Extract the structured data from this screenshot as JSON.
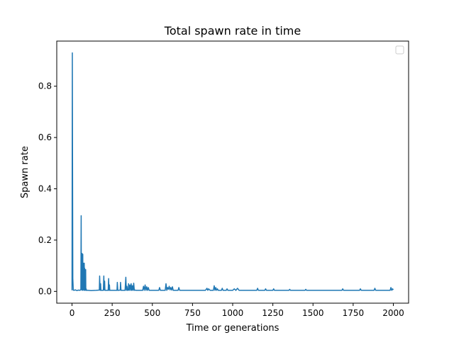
{
  "chart_data": {
    "type": "line",
    "title": "Total spawn rate in time",
    "xlabel": "Time or generations",
    "ylabel": "Spawn rate",
    "xlim": [
      -95,
      2095
    ],
    "ylim": [
      -0.046,
      0.976
    ],
    "xticks": [
      0,
      250,
      500,
      750,
      1000,
      1250,
      1500,
      1750,
      2000
    ],
    "yticks": [
      0.0,
      0.2,
      0.4,
      0.6,
      0.8
    ],
    "xtick_labels": [
      "0",
      "250",
      "500",
      "750",
      "1000",
      "1250",
      "1500",
      "1750",
      "2000"
    ],
    "ytick_labels": [
      "0.0",
      "0.2",
      "0.4",
      "0.6",
      "0.8"
    ],
    "grid": false,
    "legend": "upper-right (empty)",
    "series": [
      {
        "color": "#1f77b4",
        "x": [
          0,
          2,
          3,
          5,
          8,
          12,
          20,
          30,
          40,
          50,
          55,
          57,
          58,
          60,
          62,
          64,
          65,
          66,
          67,
          68,
          70,
          72,
          73,
          74,
          76,
          78,
          79,
          80,
          82,
          84,
          85,
          86,
          88,
          90,
          100,
          120,
          150,
          170,
          172,
          175,
          178,
          180,
          195,
          198,
          200,
          203,
          205,
          225,
          228,
          230,
          233,
          235,
          280,
          282,
          285,
          288,
          290,
          300,
          302,
          305,
          310,
          330,
          335,
          338,
          342,
          345,
          350,
          352,
          356,
          360,
          365,
          368,
          372,
          376,
          380,
          384,
          388,
          392,
          400,
          420,
          440,
          445,
          450,
          455,
          460,
          465,
          470,
          475,
          480,
          500,
          520,
          540,
          545,
          550,
          560,
          580,
          585,
          590,
          595,
          600,
          605,
          610,
          615,
          620,
          625,
          630,
          640,
          660,
          665,
          670,
          675,
          700,
          750,
          800,
          830,
          840,
          845,
          850,
          860,
          880,
          885,
          890,
          895,
          900,
          905,
          910,
          930,
          935,
          940,
          960,
          965,
          970,
          1000,
          1010,
          1020,
          1030,
          1040,
          1050,
          1100,
          1150,
          1155,
          1160,
          1200,
          1205,
          1210,
          1250,
          1255,
          1260,
          1300,
          1350,
          1355,
          1360,
          1400,
          1450,
          1455,
          1460,
          1500,
          1550,
          1600,
          1650,
          1680,
          1685,
          1690,
          1700,
          1750,
          1790,
          1795,
          1800,
          1850,
          1880,
          1885,
          1890,
          1900,
          1950,
          1980,
          1985,
          1990,
          1995,
          2000
        ],
        "y": [
          0.004,
          0.93,
          0.6,
          0.05,
          0.005,
          0.004,
          0.006,
          0.003,
          0.005,
          0.004,
          0.008,
          0.295,
          0.02,
          0.005,
          0.148,
          0.01,
          0.12,
          0.004,
          0.145,
          0.008,
          0.11,
          0.006,
          0.085,
          0.004,
          0.11,
          0.005,
          0.09,
          0.004,
          0.01,
          0.005,
          0.085,
          0.004,
          0.01,
          0.004,
          0.004,
          0.003,
          0.004,
          0.005,
          0.06,
          0.004,
          0.03,
          0.004,
          0.004,
          0.06,
          0.005,
          0.04,
          0.004,
          0.004,
          0.05,
          0.004,
          0.025,
          0.004,
          0.004,
          0.035,
          0.004,
          0.004,
          0.004,
          0.005,
          0.035,
          0.004,
          0.004,
          0.004,
          0.055,
          0.004,
          0.02,
          0.004,
          0.005,
          0.03,
          0.004,
          0.025,
          0.004,
          0.03,
          0.004,
          0.022,
          0.004,
          0.032,
          0.004,
          0.005,
          0.004,
          0.004,
          0.004,
          0.02,
          0.004,
          0.025,
          0.004,
          0.018,
          0.004,
          0.015,
          0.004,
          0.004,
          0.004,
          0.004,
          0.015,
          0.004,
          0.004,
          0.004,
          0.03,
          0.004,
          0.015,
          0.008,
          0.02,
          0.006,
          0.015,
          0.005,
          0.018,
          0.004,
          0.004,
          0.004,
          0.015,
          0.004,
          0.004,
          0.004,
          0.004,
          0.004,
          0.004,
          0.012,
          0.004,
          0.01,
          0.004,
          0.004,
          0.022,
          0.004,
          0.015,
          0.004,
          0.01,
          0.004,
          0.004,
          0.012,
          0.004,
          0.004,
          0.01,
          0.004,
          0.004,
          0.01,
          0.004,
          0.012,
          0.004,
          0.004,
          0.004,
          0.004,
          0.012,
          0.004,
          0.004,
          0.01,
          0.004,
          0.004,
          0.01,
          0.004,
          0.004,
          0.004,
          0.008,
          0.004,
          0.004,
          0.004,
          0.008,
          0.004,
          0.004,
          0.004,
          0.004,
          0.004,
          0.004,
          0.01,
          0.004,
          0.004,
          0.004,
          0.004,
          0.01,
          0.004,
          0.004,
          0.004,
          0.012,
          0.004,
          0.004,
          0.004,
          0.004,
          0.015,
          0.004,
          0.01,
          0.006
        ]
      }
    ]
  }
}
